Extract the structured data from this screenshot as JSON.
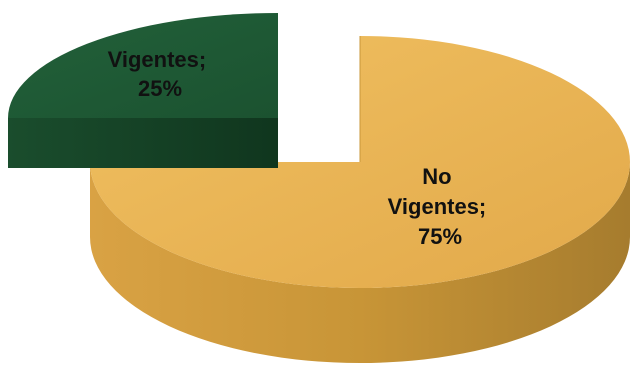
{
  "chart_data": {
    "type": "pie",
    "style": "3d-exploded",
    "slices": [
      {
        "category": "Vigentes",
        "value": 25,
        "percent_label": "25%",
        "color": "#1f5a34",
        "side_color": "#133f22",
        "exploded": true
      },
      {
        "category": "No Vigentes",
        "value": 75,
        "percent_label": "75%",
        "color": "#e7b04f",
        "side_color": "#b58a35",
        "exploded": false
      }
    ],
    "title": "",
    "legend": "none",
    "data_labels": "category; percent"
  }
}
